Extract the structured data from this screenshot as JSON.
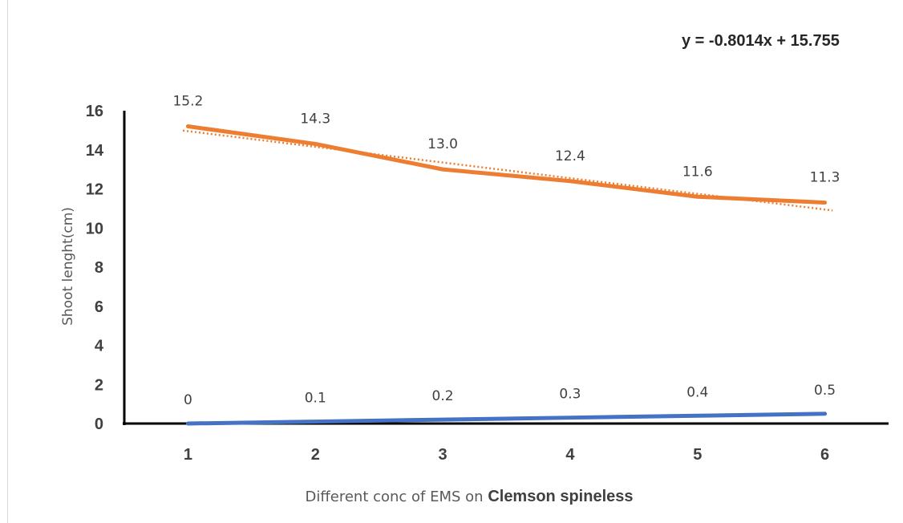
{
  "chart_data": {
    "type": "line",
    "categories": [
      "1",
      "2",
      "3",
      "4",
      "5",
      "6"
    ],
    "series": [
      {
        "values": [
          0,
          0.1,
          0.2,
          0.3,
          0.4,
          0.5
        ],
        "color": "#4472c4",
        "data_labels": [
          "0",
          "0.1",
          "0.2",
          "0.3",
          "0.4",
          "0.5"
        ]
      },
      {
        "values": [
          15.2,
          14.3,
          13.0,
          12.4,
          11.6,
          11.3
        ],
        "color": "#ed7d31",
        "data_labels": [
          "15.2",
          "14.3",
          "13.0",
          "12.4",
          "11.6",
          "11.3"
        ]
      }
    ],
    "trendline": {
      "type": "linear",
      "series_index": 1,
      "slope": -0.8014,
      "intercept": 15.755,
      "style": "dotted",
      "color": "#ed7d31"
    },
    "equation_label": "y = -0.8014x + 15.755",
    "ylabel": "Shoot lenght(cm)",
    "xlabel_prefix": "Different conc of EMS on ",
    "xlabel_emphasis": "Clemson spineless",
    "yticks": [
      "0",
      "2",
      "4",
      "6",
      "8",
      "10",
      "12",
      "14",
      "16"
    ],
    "ylim": [
      0,
      16
    ],
    "grid": false,
    "legend": "none"
  }
}
